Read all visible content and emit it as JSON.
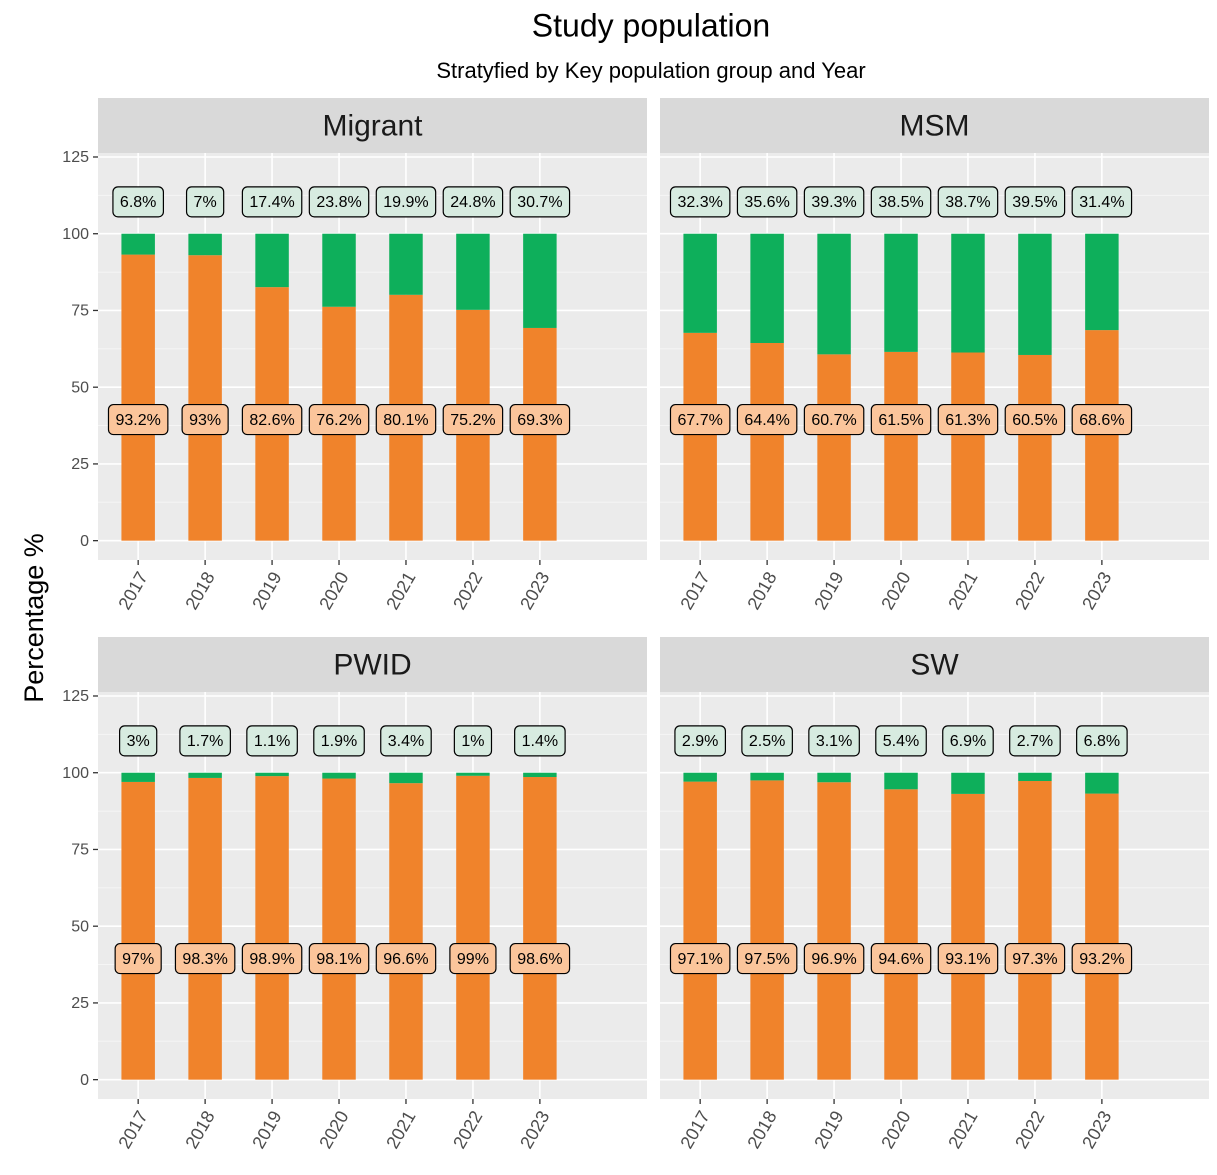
{
  "title": "Study population",
  "subtitle": "Stratyfied by Key population group and Year",
  "y_label": "Percentage %",
  "chart_data": [
    {
      "type": "bar",
      "stacked": true,
      "title": "Migrant",
      "categories": [
        "2017",
        "2018",
        "2019",
        "2020",
        "2021",
        "2022",
        "2023"
      ],
      "series": [
        {
          "color": "#f0832b",
          "label_fill": "#fbc59b",
          "values": [
            93.2,
            93,
            82.6,
            76.2,
            80.1,
            75.2,
            69.3
          ],
          "value_labels": [
            "93.2%",
            "93%",
            "82.6%",
            "76.2%",
            "80.1%",
            "75.2%",
            "69.3%"
          ]
        },
        {
          "color": "#0eaf5b",
          "label_fill": "#d7ebe0",
          "values": [
            6.8,
            7,
            17.4,
            23.8,
            19.9,
            24.8,
            30.7
          ],
          "value_labels": [
            "6.8%",
            "7%",
            "17.4%",
            "23.8%",
            "19.9%",
            "24.8%",
            "30.7%"
          ]
        }
      ],
      "ylim": [
        -6.3,
        126.3
      ],
      "yticks": [
        0,
        25,
        50,
        75,
        100,
        125
      ],
      "yminor": [
        12.5,
        37.5,
        62.5,
        87.5,
        112.5
      ],
      "grid": true
    },
    {
      "type": "bar",
      "stacked": true,
      "title": "MSM",
      "categories": [
        "2017",
        "2018",
        "2019",
        "2020",
        "2021",
        "2022",
        "2023"
      ],
      "series": [
        {
          "color": "#f0832b",
          "label_fill": "#fbc59b",
          "values": [
            67.7,
            64.4,
            60.7,
            61.5,
            61.3,
            60.5,
            68.6
          ],
          "value_labels": [
            "67.7%",
            "64.4%",
            "60.7%",
            "61.5%",
            "61.3%",
            "60.5%",
            "68.6%"
          ]
        },
        {
          "color": "#0eaf5b",
          "label_fill": "#d7ebe0",
          "values": [
            32.3,
            35.6,
            39.3,
            38.5,
            38.7,
            39.5,
            31.4
          ],
          "value_labels": [
            "32.3%",
            "35.6%",
            "39.3%",
            "38.5%",
            "38.7%",
            "39.5%",
            "31.4%"
          ]
        }
      ],
      "ylim": [
        -6.3,
        126.3
      ],
      "yticks": [
        0,
        25,
        50,
        75,
        100,
        125
      ],
      "yminor": [
        12.5,
        37.5,
        62.5,
        87.5,
        112.5
      ],
      "grid": true
    },
    {
      "type": "bar",
      "stacked": true,
      "title": "PWID",
      "categories": [
        "2017",
        "2018",
        "2019",
        "2020",
        "2021",
        "2022",
        "2023"
      ],
      "series": [
        {
          "color": "#f0832b",
          "label_fill": "#fbc59b",
          "values": [
            97,
            98.3,
            98.9,
            98.1,
            96.6,
            99,
            98.6
          ],
          "value_labels": [
            "97%",
            "98.3%",
            "98.9%",
            "98.1%",
            "96.6%",
            "99%",
            "98.6%"
          ]
        },
        {
          "color": "#0eaf5b",
          "label_fill": "#d7ebe0",
          "values": [
            3,
            1.7,
            1.1,
            1.9,
            3.4,
            1,
            1.4
          ],
          "value_labels": [
            "3%",
            "1.7%",
            "1.1%",
            "1.9%",
            "3.4%",
            "1%",
            "1.4%"
          ]
        }
      ],
      "ylim": [
        -6.3,
        126.3
      ],
      "yticks": [
        0,
        25,
        50,
        75,
        100,
        125
      ],
      "yminor": [
        12.5,
        37.5,
        62.5,
        87.5,
        112.5
      ],
      "grid": true
    },
    {
      "type": "bar",
      "stacked": true,
      "title": "SW",
      "categories": [
        "2017",
        "2018",
        "2019",
        "2020",
        "2021",
        "2022",
        "2023"
      ],
      "series": [
        {
          "color": "#f0832b",
          "label_fill": "#fbc59b",
          "values": [
            97.1,
            97.5,
            96.9,
            94.6,
            93.1,
            97.3,
            93.2
          ],
          "value_labels": [
            "97.1%",
            "97.5%",
            "96.9%",
            "94.6%",
            "93.1%",
            "97.3%",
            "93.2%"
          ]
        },
        {
          "color": "#0eaf5b",
          "label_fill": "#d7ebe0",
          "values": [
            2.9,
            2.5,
            3.1,
            5.4,
            6.9,
            2.7,
            6.8
          ],
          "value_labels": [
            "2.9%",
            "2.5%",
            "3.1%",
            "5.4%",
            "6.9%",
            "2.7%",
            "6.8%"
          ]
        }
      ],
      "ylim": [
        -6.3,
        126.3
      ],
      "yticks": [
        0,
        25,
        50,
        75,
        100,
        125
      ],
      "yminor": [
        12.5,
        37.5,
        62.5,
        87.5,
        112.5
      ],
      "grid": true
    }
  ]
}
